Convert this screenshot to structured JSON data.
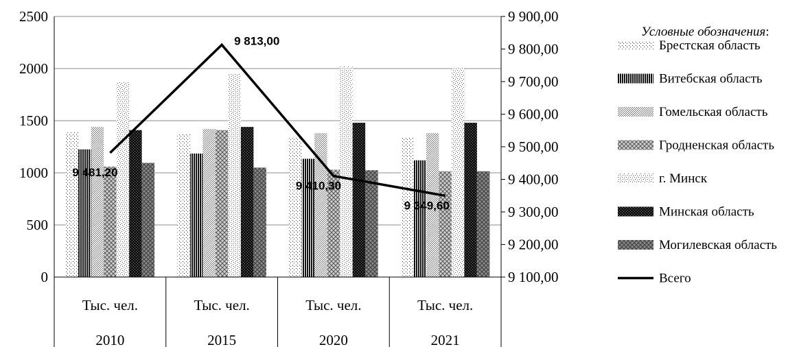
{
  "chart_data": {
    "type": "bar",
    "categories": [
      {
        "label": "Тыс. чел.",
        "year": "2010"
      },
      {
        "label": "Тыс. чел.",
        "year": "2015"
      },
      {
        "label": "Тыс. чел.",
        "year": "2020"
      },
      {
        "label": "Тыс. чел.",
        "year": "2021"
      }
    ],
    "y_left": {
      "min": 0,
      "max": 2500,
      "ticks": [
        "0",
        "500",
        "1000",
        "1500",
        "2000",
        "2500"
      ]
    },
    "y_right": {
      "min": 9100,
      "max": 9900,
      "ticks": [
        "9 100,00",
        "9 200,00",
        "9 300,00",
        "9 400,00",
        "9 500,00",
        "9 600,00",
        "9 700,00",
        "9 800,00",
        "9 900,00"
      ]
    },
    "series": [
      {
        "name": "Брестская область",
        "values": [
          1390,
          1370,
          1350,
          1345
        ],
        "pattern": "pat-brest"
      },
      {
        "name": "Витебская область",
        "values": [
          1225,
          1185,
          1135,
          1120
        ],
        "pattern": "pat-vitebsk"
      },
      {
        "name": "Гомельская область",
        "values": [
          1440,
          1420,
          1380,
          1380
        ],
        "pattern": "pat-gomel"
      },
      {
        "name": "Гродненская область",
        "values": [
          1060,
          1410,
          1030,
          1015
        ],
        "pattern": "pat-grodno"
      },
      {
        "name": "г. Минск",
        "values": [
          1870,
          1950,
          2020,
          2010
        ],
        "pattern": "pat-minsk"
      },
      {
        "name": "Минская область",
        "values": [
          1410,
          1440,
          1480,
          1480
        ],
        "pattern": "pat-minskobl"
      },
      {
        "name": "Могилевская область",
        "values": [
          1095,
          1050,
          1025,
          1015
        ],
        "pattern": "pat-mogilev"
      }
    ],
    "line_series": {
      "name": "Всего",
      "values": [
        9481.2,
        9813.0,
        9410.3,
        9349.6
      ],
      "labels": [
        "9 481,20",
        "9 813,00",
        "9 410,30",
        "9 349,60"
      ]
    },
    "grid": true,
    "legend_position": "right"
  },
  "legend": {
    "title_main": "Условные обозначения",
    "title_suffix": ":"
  }
}
